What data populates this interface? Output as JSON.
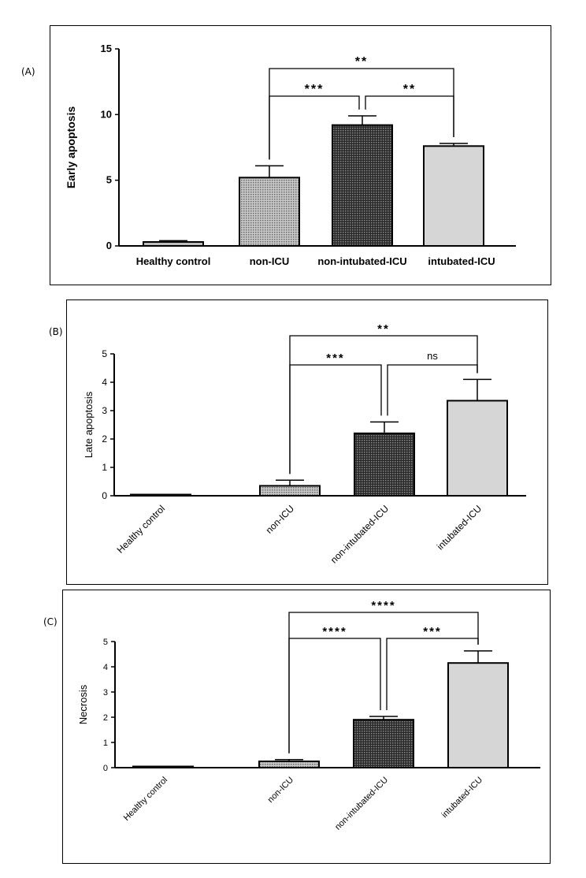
{
  "panel_labels": [
    "(A)",
    "(B)",
    "(C)"
  ],
  "chart_data": [
    {
      "type": "bar",
      "panel": "(A)",
      "ylabel": "Early apoptosis",
      "xlabel": "",
      "ylim": [
        0,
        15
      ],
      "yticks": [
        0,
        5,
        10,
        15
      ],
      "categories": [
        "Healthy control",
        "non-ICU",
        "non-intubated-ICU",
        "intubated-ICU"
      ],
      "values": [
        0.3,
        5.2,
        9.2,
        7.6
      ],
      "error": [
        0.1,
        0.9,
        0.7,
        0.2
      ],
      "bar_colors": [
        "#bdbdbd",
        "#a6a6a6",
        "#3b3b3b",
        "#d6d6d6"
      ],
      "significance": [
        {
          "from": 1,
          "to": 3,
          "label": "**"
        },
        {
          "from": 1,
          "to": 2,
          "label": "***"
        },
        {
          "from": 2,
          "to": 3,
          "label": "**"
        }
      ]
    },
    {
      "type": "bar",
      "panel": "(B)",
      "ylabel": "Late apoptosis",
      "xlabel": "",
      "ylim": [
        0,
        5
      ],
      "yticks": [
        0,
        1,
        2,
        3,
        4,
        5
      ],
      "categories": [
        "Healthy control",
        "non-ICU",
        "non-intubated-ICU",
        "intubated-ICU"
      ],
      "values": [
        0.03,
        0.35,
        2.2,
        3.35
      ],
      "error": [
        0.02,
        0.2,
        0.4,
        0.75
      ],
      "bar_colors": [
        "#bdbdbd",
        "#a6a6a6",
        "#3b3b3b",
        "#d6d6d6"
      ],
      "significance": [
        {
          "from": 1,
          "to": 3,
          "label": "**"
        },
        {
          "from": 1,
          "to": 2,
          "label": "***"
        },
        {
          "from": 2,
          "to": 3,
          "label": "ns"
        }
      ]
    },
    {
      "type": "bar",
      "panel": "(C)",
      "ylabel": "Necrosis",
      "xlabel": "",
      "ylim": [
        0,
        5
      ],
      "yticks": [
        0,
        1,
        2,
        3,
        4,
        5
      ],
      "categories": [
        "Healthy control",
        "non-ICU",
        "non-intubated-ICU",
        "intubated-ICU"
      ],
      "values": [
        0.02,
        0.25,
        1.9,
        4.15
      ],
      "error": [
        0.01,
        0.07,
        0.13,
        0.48
      ],
      "bar_colors": [
        "#bdbdbd",
        "#a6a6a6",
        "#3b3b3b",
        "#d6d6d6"
      ],
      "significance": [
        {
          "from": 1,
          "to": 3,
          "label": "****"
        },
        {
          "from": 1,
          "to": 2,
          "label": "****"
        },
        {
          "from": 2,
          "to": 3,
          "label": "***"
        }
      ]
    }
  ]
}
